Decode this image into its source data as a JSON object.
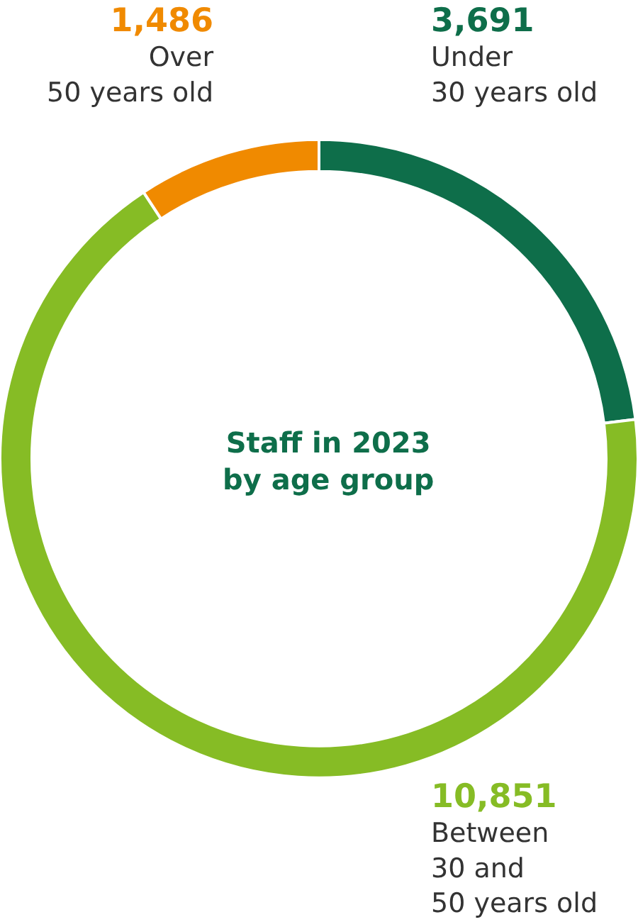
{
  "chart_data": {
    "type": "donut",
    "title": "Staff in 2023\nby age group",
    "categories": [
      "Under\n30 years old",
      "Between\n30 and\n50 years old",
      "Over\n50 years old"
    ],
    "values": [
      3691,
      10851,
      1486
    ],
    "value_labels": [
      "3,691",
      "10,851",
      "1,486"
    ],
    "colors": [
      "#0e6e4a",
      "#86bc25",
      "#f08a00"
    ],
    "legend": false
  }
}
